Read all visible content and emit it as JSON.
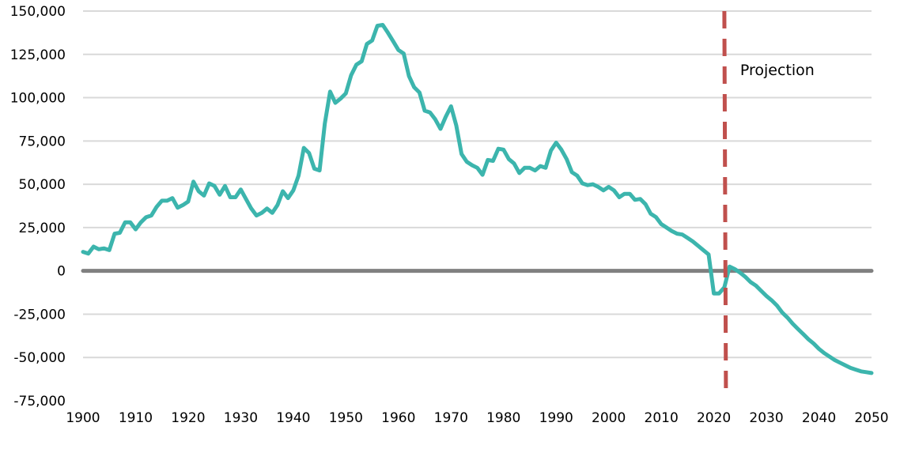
{
  "chart_data": {
    "type": "line",
    "title": "",
    "xlabel": "",
    "ylabel": "",
    "xlim": [
      1900,
      2050
    ],
    "ylim": [
      -75000,
      150000
    ],
    "grid": true,
    "x_ticks": [
      "1900",
      "1910",
      "1920",
      "1930",
      "1940",
      "1950",
      "1960",
      "1970",
      "1980",
      "1990",
      "2000",
      "2010",
      "2020",
      "2030",
      "2040",
      "2050"
    ],
    "y_ticks": [
      "150,000",
      "125,000",
      "100,000",
      "75,000",
      "50,000",
      "25,000",
      "0",
      "-25,000",
      "-50,000",
      "-75,000"
    ],
    "y_tick_values": [
      150000,
      125000,
      100000,
      75000,
      50000,
      25000,
      0,
      -25000,
      -50000,
      -75000
    ],
    "x_tick_values": [
      1900,
      1910,
      1920,
      1930,
      1940,
      1950,
      1960,
      1970,
      1980,
      1990,
      2000,
      2010,
      2020,
      2030,
      2040,
      2050
    ],
    "series": [
      {
        "color": "#3cb5ad",
        "x": [
          1900,
          1901,
          1902,
          1903,
          1904,
          1905,
          1906,
          1907,
          1908,
          1909,
          1910,
          1911,
          1912,
          1913,
          1914,
          1915,
          1916,
          1917,
          1918,
          1919,
          1920,
          1921,
          1922,
          1923,
          1924,
          1925,
          1926,
          1927,
          1928,
          1929,
          1930,
          1931,
          1932,
          1933,
          1934,
          1935,
          1936,
          1937,
          1938,
          1939,
          1940,
          1941,
          1942,
          1943,
          1944,
          1945,
          1946,
          1947,
          1948,
          1949,
          1950,
          1951,
          1952,
          1953,
          1954,
          1955,
          1956,
          1957,
          1958,
          1959,
          1960,
          1961,
          1962,
          1963,
          1964,
          1965,
          1966,
          1967,
          1968,
          1969,
          1970,
          1971,
          1972,
          1973,
          1974,
          1975,
          1976,
          1977,
          1978,
          1979,
          1980,
          1981,
          1982,
          1983,
          1984,
          1985,
          1986,
          1987,
          1988,
          1989,
          1990,
          1991,
          1992,
          1993,
          1994,
          1995,
          1996,
          1997,
          1998,
          1999,
          2000,
          2001,
          2002,
          2003,
          2004,
          2005,
          2006,
          2007,
          2008,
          2009,
          2010,
          2011,
          2012,
          2013,
          2014,
          2015,
          2016,
          2017,
          2018,
          2019,
          2020,
          2021,
          2022,
          2023,
          2024,
          2025,
          2026,
          2027,
          2028,
          2029,
          2030,
          2031,
          2032,
          2033,
          2034,
          2035,
          2036,
          2037,
          2038,
          2039,
          2040,
          2041,
          2042,
          2043,
          2044,
          2045,
          2046,
          2047,
          2048,
          2049,
          2050
        ],
        "values": [
          11000,
          10000,
          14000,
          12500,
          13000,
          12000,
          21500,
          22000,
          28000,
          28000,
          24000,
          28000,
          31000,
          32000,
          37000,
          40500,
          40500,
          42000,
          36500,
          38000,
          40000,
          51500,
          46000,
          43500,
          50500,
          49000,
          44000,
          49000,
          42500,
          42500,
          47000,
          41500,
          36000,
          32000,
          33500,
          36000,
          33500,
          38000,
          46000,
          42000,
          46500,
          55000,
          71000,
          68000,
          59000,
          58000,
          85000,
          103500,
          97000,
          99500,
          102500,
          113000,
          119000,
          121000,
          131000,
          133000,
          141500,
          142000,
          137500,
          132500,
          127500,
          125500,
          112500,
          106000,
          103000,
          92500,
          91500,
          87500,
          82000,
          89000,
          95000,
          84000,
          67500,
          63000,
          61000,
          59500,
          55500,
          64000,
          63500,
          70500,
          70000,
          64500,
          62000,
          56500,
          59500,
          59500,
          58000,
          60500,
          59500,
          69500,
          74000,
          70000,
          64500,
          57000,
          55000,
          50500,
          49500,
          50000,
          48500,
          46500,
          48500,
          46500,
          42500,
          44500,
          44500,
          41000,
          41500,
          38500,
          33000,
          31000,
          27000,
          25000,
          23000,
          21500,
          21000,
          19000,
          17000,
          14500,
          12000,
          9500,
          -13000,
          -13000,
          -9500,
          2500,
          1000,
          -1000,
          -3500,
          -6500,
          -8500,
          -11500,
          -14500,
          -17000,
          -20000,
          -24000,
          -27000,
          -30500,
          -33500,
          -36500,
          -39500,
          -42000,
          -45000,
          -47500,
          -49500,
          -51500,
          -53000,
          -54500,
          -56000,
          -57000,
          -58000,
          -58500,
          -59000
        ]
      }
    ],
    "zero_line_color": "#808080",
    "grid_color": "#d9d9d9",
    "annotations": [
      {
        "type": "vertical-dashed-line",
        "x": 2022,
        "color": "#c0504d",
        "label": "Projection"
      }
    ]
  }
}
